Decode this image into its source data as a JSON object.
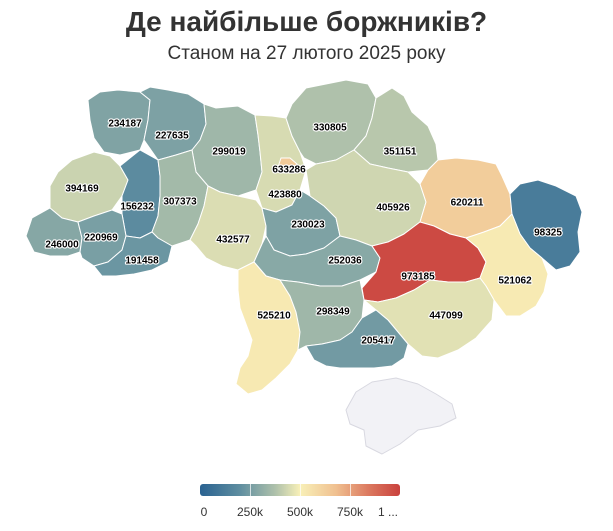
{
  "title": "Де найбільше боржників?",
  "subtitle": "Станом на 27 лютого 2025 року",
  "chart_data": {
    "type": "choropleth",
    "regions": [
      {
        "name": "Volyn",
        "value": 234187
      },
      {
        "name": "Rivne",
        "value": 227635
      },
      {
        "name": "Zhytomyr",
        "value": 299019
      },
      {
        "name": "Kyiv city",
        "value": 633286
      },
      {
        "name": "Kyiv oblast",
        "value": 423880
      },
      {
        "name": "Chernihiv",
        "value": 330805
      },
      {
        "name": "Sumy",
        "value": 351151
      },
      {
        "name": "Lviv",
        "value": 394169
      },
      {
        "name": "Ternopil",
        "value": 156232
      },
      {
        "name": "Khmelnytskyi",
        "value": 307373
      },
      {
        "name": "Vinnytsia",
        "value": 432577
      },
      {
        "name": "Cherkasy",
        "value": 230023
      },
      {
        "name": "Poltava",
        "value": 405926
      },
      {
        "name": "Kharkiv",
        "value": 620211
      },
      {
        "name": "Luhansk",
        "value": 98325
      },
      {
        "name": "Zakarpattia",
        "value": 246000
      },
      {
        "name": "Ivano-Frankivsk",
        "value": 220969
      },
      {
        "name": "Chernivtsi",
        "value": 191458
      },
      {
        "name": "Kirovohrad",
        "value": 252036
      },
      {
        "name": "Dnipropetrovsk",
        "value": 973185
      },
      {
        "name": "Donetsk",
        "value": 521062
      },
      {
        "name": "Odesa",
        "value": 525210
      },
      {
        "name": "Mykolaiv",
        "value": 298349
      },
      {
        "name": "Zaporizhzhia",
        "value": 447099
      },
      {
        "name": "Kherson",
        "value": 205417
      },
      {
        "name": "Crimea",
        "value": null
      }
    ],
    "color_scale": {
      "min": 0,
      "max": 1000000,
      "colors": [
        "#2a6291",
        "#5f8ea0",
        "#b0c2ab",
        "#f8f0b8",
        "#f0c090",
        "#dc7a60",
        "#c9413d"
      ],
      "no_data_color": "#f2f2f6"
    },
    "legend": {
      "position": "bottom-center",
      "tick_labels": [
        "0",
        "250k",
        "500k",
        "750k",
        "1 ..."
      ]
    }
  }
}
